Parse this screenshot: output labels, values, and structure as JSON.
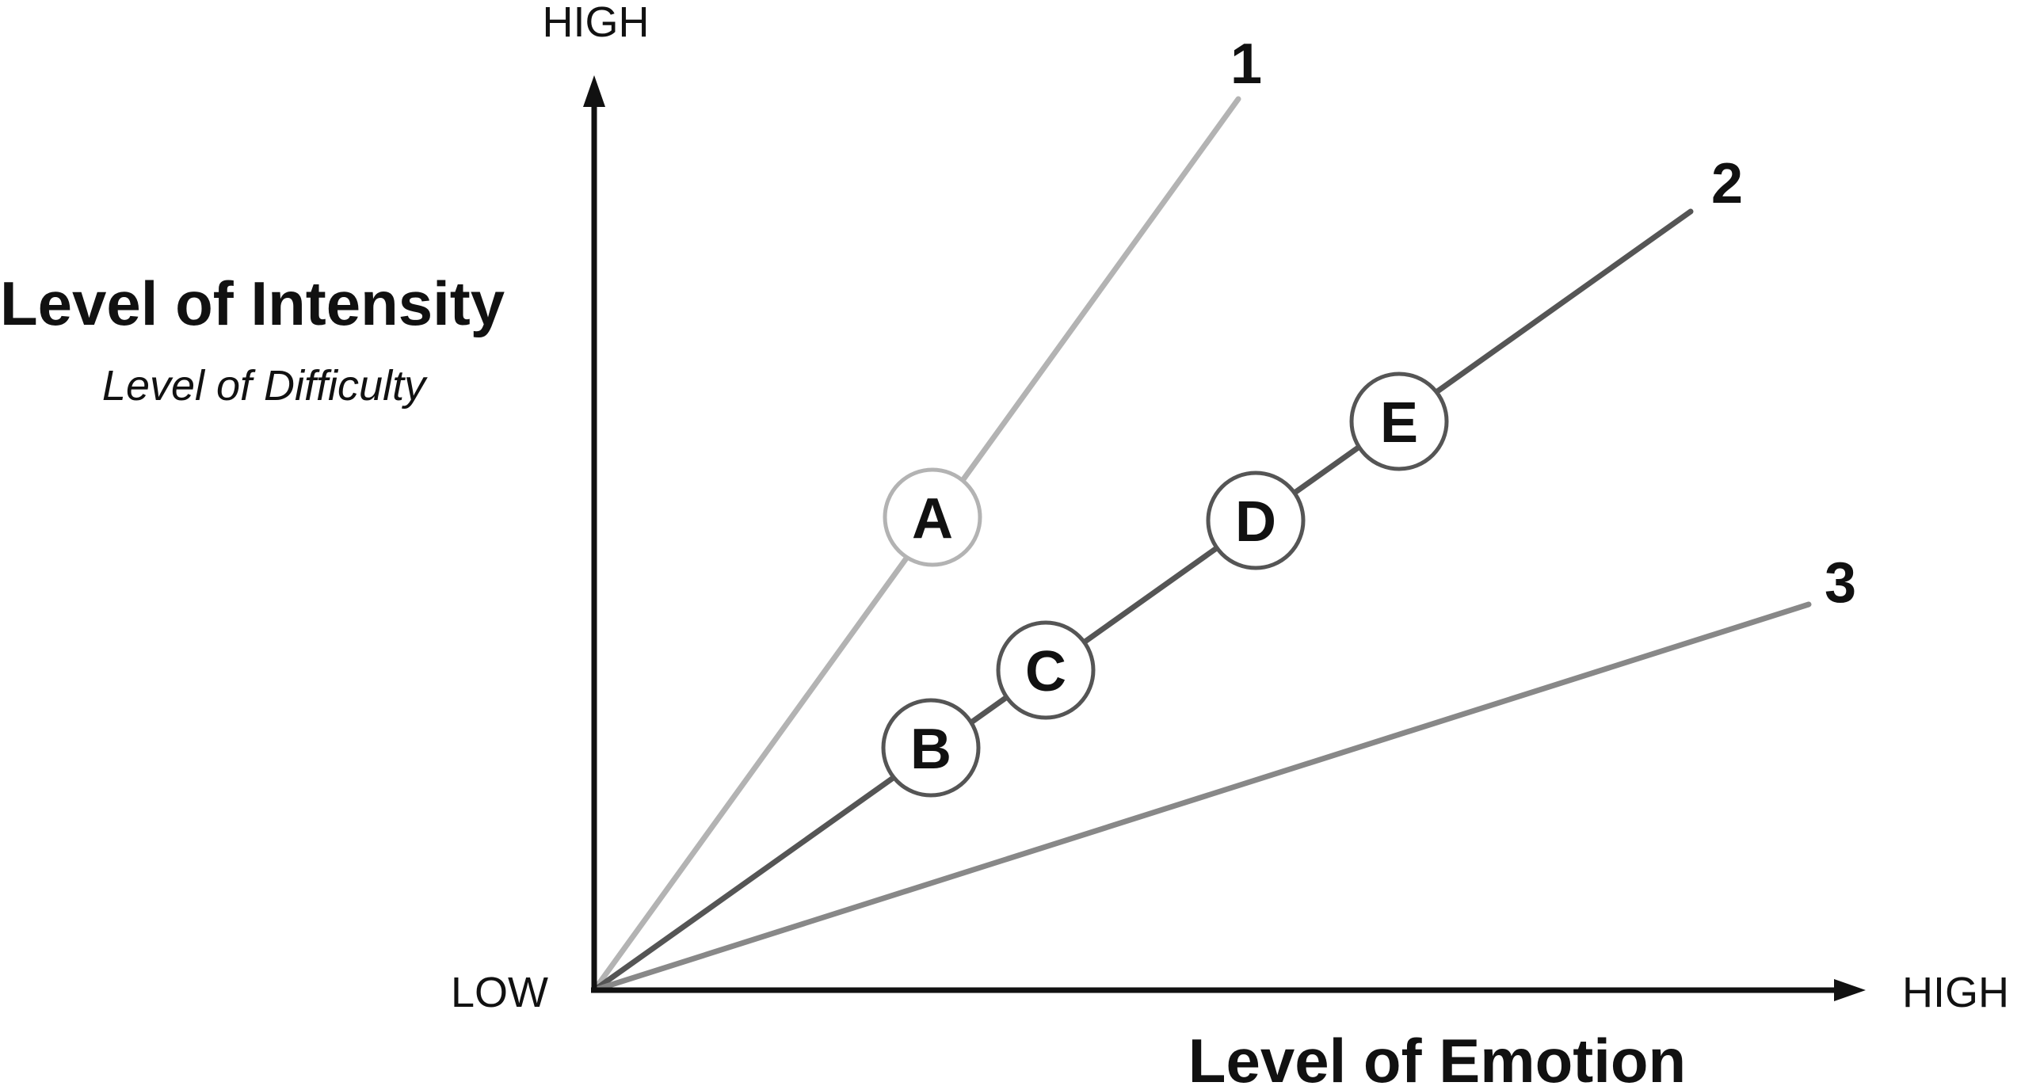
{
  "y_axis": {
    "high_label": "HIGH",
    "title": "Level of Intensity",
    "subtitle": "Level of Difficulty"
  },
  "x_axis": {
    "high_label": "HIGH",
    "title": "Level of Emotion"
  },
  "origin_label": "LOW",
  "lines": [
    {
      "label": "1",
      "color": "#b3b3b3"
    },
    {
      "label": "2",
      "color": "#555555"
    },
    {
      "label": "3",
      "color": "#888888"
    }
  ],
  "nodes": [
    {
      "letter": "A",
      "line": "1",
      "color": "#b3b3b3"
    },
    {
      "letter": "B",
      "line": "2",
      "color": "#555555"
    },
    {
      "letter": "C",
      "line": "2",
      "color": "#555555"
    },
    {
      "letter": "D",
      "line": "2",
      "color": "#555555"
    },
    {
      "letter": "E",
      "line": "2",
      "color": "#555555"
    }
  ]
}
